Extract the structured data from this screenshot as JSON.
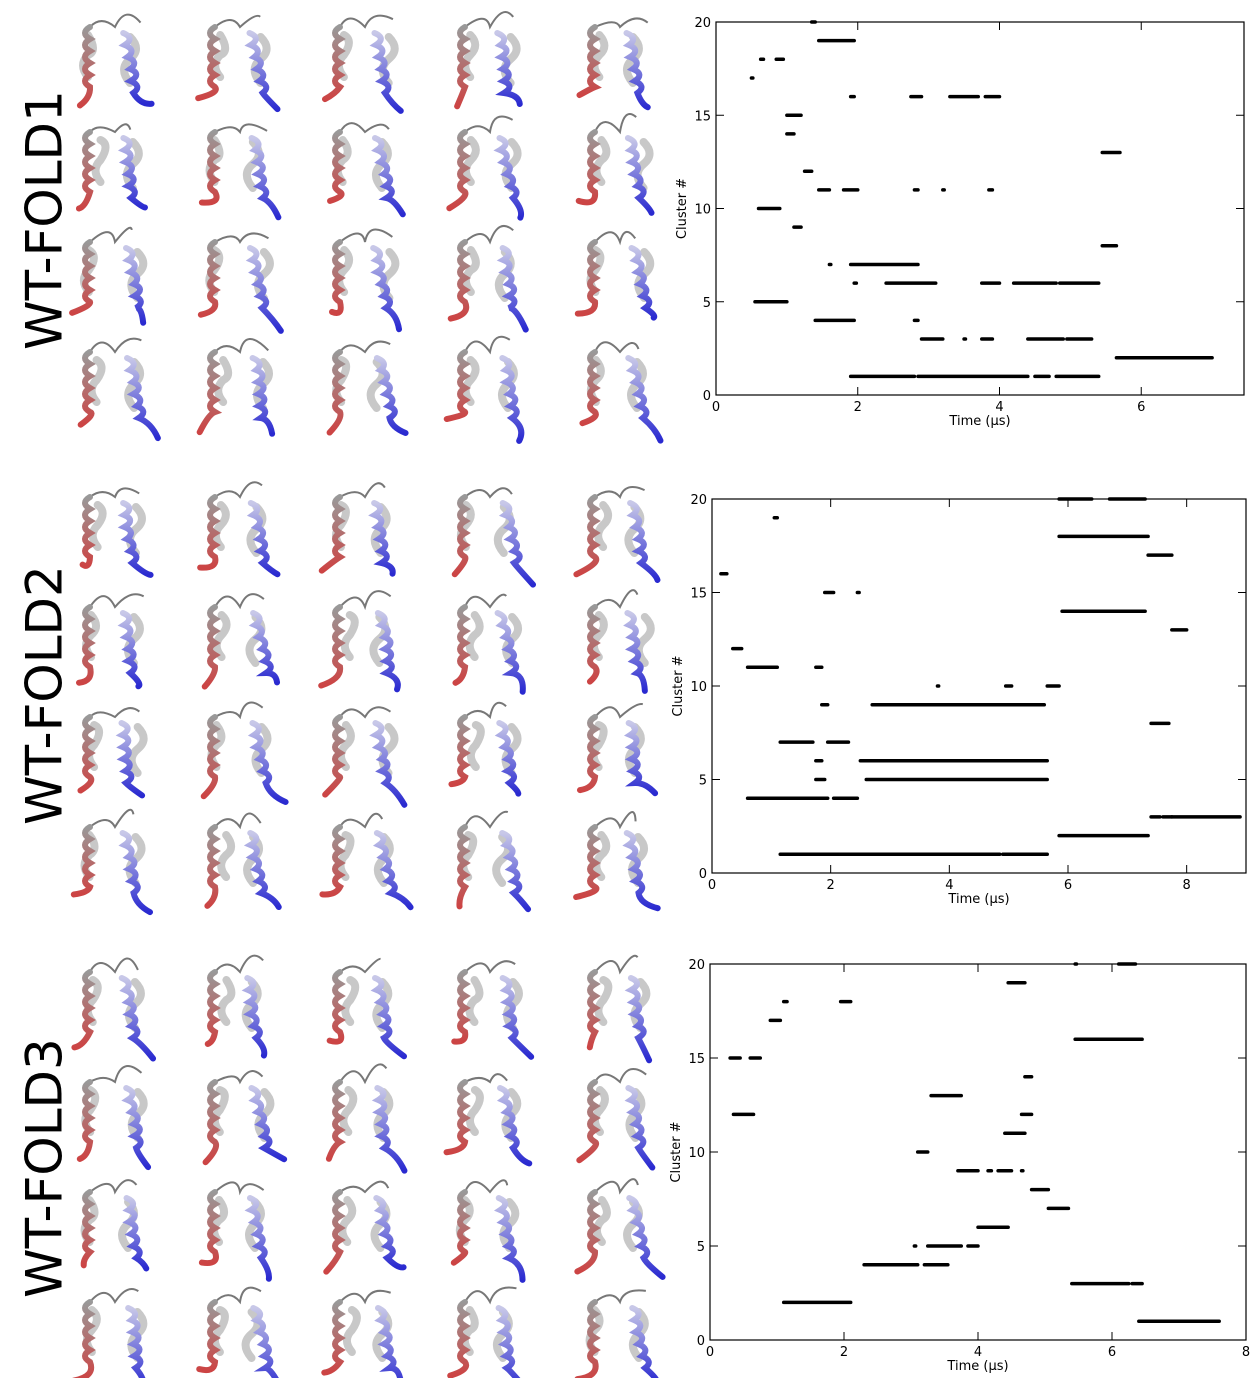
{
  "chart_data": [
    {
      "type": "segments",
      "panel_label": "WT-FOLD1",
      "x_label": "Time (µs)",
      "y_label": "Cluster #",
      "color": "#000000",
      "xlim": [
        0,
        7.45
      ],
      "ylim": [
        0,
        20
      ],
      "xticks": [
        0,
        2,
        4,
        6
      ],
      "yticks": [
        0,
        5,
        10,
        15,
        20
      ],
      "segments": [
        {
          "y": 17,
          "x": [
            0.5,
            0.52
          ]
        },
        {
          "y": 18,
          "x": [
            0.63,
            0.67
          ]
        },
        {
          "y": 18,
          "x": [
            0.85,
            0.95
          ]
        },
        {
          "y": 15,
          "x": [
            1.0,
            1.2
          ]
        },
        {
          "y": 14,
          "x": [
            1.0,
            1.1
          ]
        },
        {
          "y": 12,
          "x": [
            1.25,
            1.35
          ]
        },
        {
          "y": 10,
          "x": [
            0.6,
            0.9
          ]
        },
        {
          "y": 9,
          "x": [
            1.1,
            1.2
          ]
        },
        {
          "y": 5,
          "x": [
            0.55,
            1.0
          ]
        },
        {
          "y": 20,
          "x": [
            1.35,
            1.4
          ]
        },
        {
          "y": 19,
          "x": [
            1.45,
            1.95
          ]
        },
        {
          "y": 16,
          "x": [
            1.9,
            1.95
          ]
        },
        {
          "y": 16,
          "x": [
            2.75,
            2.9
          ]
        },
        {
          "y": 16,
          "x": [
            3.3,
            3.7
          ]
        },
        {
          "y": 16,
          "x": [
            3.8,
            4.0
          ]
        },
        {
          "y": 11,
          "x": [
            1.45,
            1.6
          ]
        },
        {
          "y": 11,
          "x": [
            1.8,
            2.0
          ]
        },
        {
          "y": 11,
          "x": [
            2.8,
            2.85
          ]
        },
        {
          "y": 11,
          "x": [
            3.2,
            3.22
          ]
        },
        {
          "y": 11,
          "x": [
            3.85,
            3.9
          ]
        },
        {
          "y": 7,
          "x": [
            1.6,
            1.62
          ]
        },
        {
          "y": 7,
          "x": [
            1.9,
            2.85
          ]
        },
        {
          "y": 6,
          "x": [
            1.95,
            1.98
          ]
        },
        {
          "y": 6,
          "x": [
            2.4,
            3.1
          ]
        },
        {
          "y": 6,
          "x": [
            3.75,
            4.0
          ]
        },
        {
          "y": 6,
          "x": [
            4.2,
            4.8
          ]
        },
        {
          "y": 6,
          "x": [
            4.85,
            5.4
          ]
        },
        {
          "y": 4,
          "x": [
            1.4,
            1.95
          ]
        },
        {
          "y": 4,
          "x": [
            2.8,
            2.85
          ]
        },
        {
          "y": 3,
          "x": [
            2.9,
            3.2
          ]
        },
        {
          "y": 3,
          "x": [
            3.5,
            3.52
          ]
        },
        {
          "y": 3,
          "x": [
            3.75,
            3.9
          ]
        },
        {
          "y": 3,
          "x": [
            4.4,
            4.9
          ]
        },
        {
          "y": 3,
          "x": [
            4.95,
            5.3
          ]
        },
        {
          "y": 1,
          "x": [
            1.9,
            2.8
          ]
        },
        {
          "y": 1,
          "x": [
            2.85,
            4.4
          ]
        },
        {
          "y": 1,
          "x": [
            4.5,
            4.7
          ]
        },
        {
          "y": 1,
          "x": [
            4.8,
            5.4
          ]
        },
        {
          "y": 13,
          "x": [
            5.45,
            5.7
          ]
        },
        {
          "y": 8,
          "x": [
            5.45,
            5.65
          ]
        },
        {
          "y": 2,
          "x": [
            5.65,
            7.0
          ]
        }
      ]
    },
    {
      "type": "segments",
      "panel_label": "WT-FOLD2",
      "x_label": "Time (µs)",
      "y_label": "Cluster #",
      "color": "#000000",
      "xlim": [
        0,
        9
      ],
      "ylim": [
        0,
        20
      ],
      "xticks": [
        0,
        2,
        4,
        6,
        8
      ],
      "yticks": [
        0,
        5,
        10,
        15,
        20
      ],
      "segments": [
        {
          "y": 16,
          "x": [
            0.15,
            0.25
          ]
        },
        {
          "y": 12,
          "x": [
            0.35,
            0.5
          ]
        },
        {
          "y": 19,
          "x": [
            1.05,
            1.1
          ]
        },
        {
          "y": 11,
          "x": [
            0.6,
            1.1
          ]
        },
        {
          "y": 11,
          "x": [
            1.75,
            1.85
          ]
        },
        {
          "y": 7,
          "x": [
            1.15,
            1.7
          ]
        },
        {
          "y": 7,
          "x": [
            1.95,
            2.3
          ]
        },
        {
          "y": 4,
          "x": [
            0.6,
            1.95
          ]
        },
        {
          "y": 4,
          "x": [
            2.05,
            2.45
          ]
        },
        {
          "y": 15,
          "x": [
            1.9,
            2.05
          ]
        },
        {
          "y": 15,
          "x": [
            2.45,
            2.48
          ]
        },
        {
          "y": 9,
          "x": [
            1.85,
            1.95
          ]
        },
        {
          "y": 6,
          "x": [
            1.75,
            1.85
          ]
        },
        {
          "y": 5,
          "x": [
            1.75,
            1.9
          ]
        },
        {
          "y": 6,
          "x": [
            2.5,
            5.65
          ]
        },
        {
          "y": 5,
          "x": [
            2.6,
            5.65
          ]
        },
        {
          "y": 9,
          "x": [
            2.7,
            5.6
          ]
        },
        {
          "y": 10,
          "x": [
            3.8,
            3.82
          ]
        },
        {
          "y": 10,
          "x": [
            4.95,
            5.05
          ]
        },
        {
          "y": 1,
          "x": [
            1.15,
            4.85
          ]
        },
        {
          "y": 1,
          "x": [
            4.9,
            5.65
          ]
        },
        {
          "y": 10,
          "x": [
            5.65,
            5.85
          ]
        },
        {
          "y": 20,
          "x": [
            5.85,
            6.4
          ]
        },
        {
          "y": 20,
          "x": [
            6.7,
            7.3
          ]
        },
        {
          "y": 18,
          "x": [
            5.85,
            7.35
          ]
        },
        {
          "y": 14,
          "x": [
            5.9,
            7.3
          ]
        },
        {
          "y": 2,
          "x": [
            5.85,
            7.35
          ]
        },
        {
          "y": 17,
          "x": [
            7.35,
            7.75
          ]
        },
        {
          "y": 13,
          "x": [
            7.75,
            8.0
          ]
        },
        {
          "y": 8,
          "x": [
            7.4,
            7.7
          ]
        },
        {
          "y": 3,
          "x": [
            7.4,
            7.55
          ]
        },
        {
          "y": 3,
          "x": [
            7.6,
            7.75
          ]
        },
        {
          "y": 3,
          "x": [
            7.75,
            8.9
          ]
        }
      ]
    },
    {
      "type": "segments",
      "panel_label": "WT-FOLD3",
      "x_label": "Time (µs)",
      "y_label": "Cluster #",
      "color": "#000000",
      "xlim": [
        0,
        8
      ],
      "ylim": [
        0,
        20
      ],
      "xticks": [
        0,
        2,
        4,
        6,
        8
      ],
      "yticks": [
        0,
        5,
        10,
        15,
        20
      ],
      "segments": [
        {
          "y": 15,
          "x": [
            0.3,
            0.45
          ]
        },
        {
          "y": 15,
          "x": [
            0.6,
            0.75
          ]
        },
        {
          "y": 12,
          "x": [
            0.35,
            0.65
          ]
        },
        {
          "y": 17,
          "x": [
            0.9,
            1.05
          ]
        },
        {
          "y": 18,
          "x": [
            1.1,
            1.15
          ]
        },
        {
          "y": 2,
          "x": [
            1.1,
            2.1
          ]
        },
        {
          "y": 18,
          "x": [
            1.95,
            2.1
          ]
        },
        {
          "y": 4,
          "x": [
            2.3,
            3.1
          ]
        },
        {
          "y": 5,
          "x": [
            3.05,
            3.07
          ]
        },
        {
          "y": 10,
          "x": [
            3.1,
            3.25
          ]
        },
        {
          "y": 5,
          "x": [
            3.25,
            3.75
          ]
        },
        {
          "y": 4,
          "x": [
            3.2,
            3.55
          ]
        },
        {
          "y": 13,
          "x": [
            3.3,
            3.75
          ]
        },
        {
          "y": 9,
          "x": [
            3.7,
            4.0
          ]
        },
        {
          "y": 9,
          "x": [
            4.15,
            4.2
          ]
        },
        {
          "y": 5,
          "x": [
            3.85,
            4.0
          ]
        },
        {
          "y": 6,
          "x": [
            4.0,
            4.45
          ]
        },
        {
          "y": 9,
          "x": [
            4.3,
            4.5
          ]
        },
        {
          "y": 19,
          "x": [
            4.45,
            4.7
          ]
        },
        {
          "y": 11,
          "x": [
            4.4,
            4.7
          ]
        },
        {
          "y": 9,
          "x": [
            4.65,
            4.67
          ]
        },
        {
          "y": 14,
          "x": [
            4.7,
            4.8
          ]
        },
        {
          "y": 12,
          "x": [
            4.65,
            4.8
          ]
        },
        {
          "y": 8,
          "x": [
            4.8,
            5.05
          ]
        },
        {
          "y": 7,
          "x": [
            5.05,
            5.35
          ]
        },
        {
          "y": 20,
          "x": [
            5.45,
            5.47
          ]
        },
        {
          "y": 16,
          "x": [
            5.45,
            6.3
          ]
        },
        {
          "y": 16,
          "x": [
            6.3,
            6.45
          ]
        },
        {
          "y": 3,
          "x": [
            5.4,
            6.25
          ]
        },
        {
          "y": 3,
          "x": [
            6.3,
            6.45
          ]
        },
        {
          "y": 20,
          "x": [
            6.1,
            6.35
          ]
        },
        {
          "y": 1,
          "x": [
            6.4,
            7.6
          ]
        }
      ]
    }
  ]
}
